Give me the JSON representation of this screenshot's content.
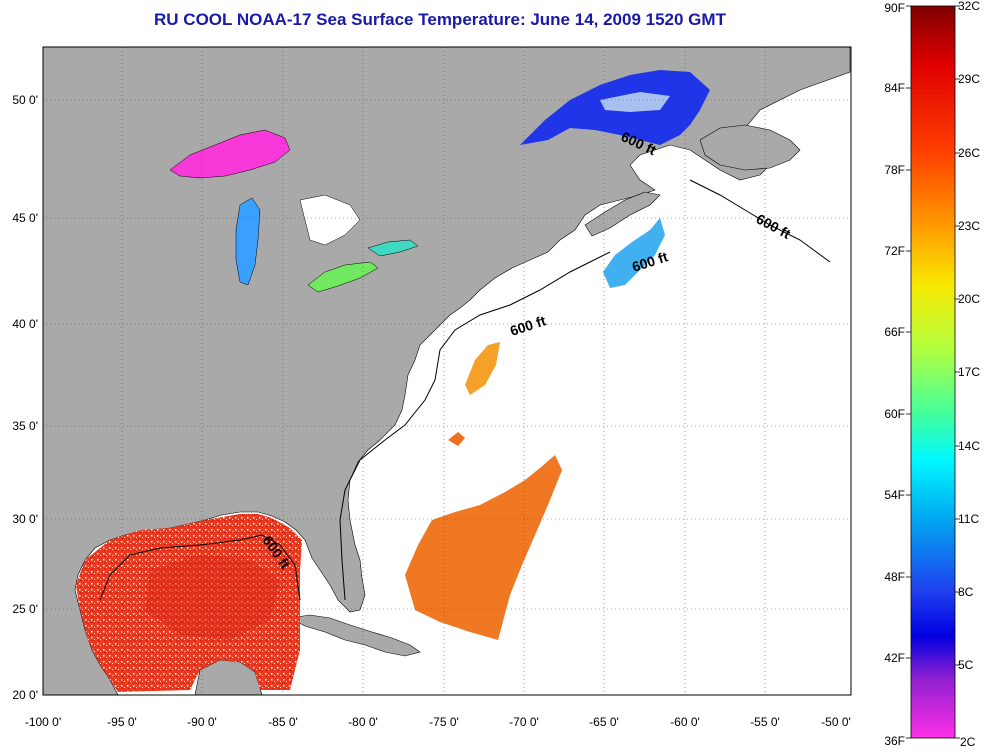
{
  "title": "RU COOL  NOAA-17  Sea Surface Temperature:  June 14, 2009 1520 GMT",
  "lat_ticks": [
    "50 0'",
    "45 0'",
    "40 0'",
    "35 0'",
    "30 0'",
    "25 0'",
    "20 0'"
  ],
  "lon_ticks": [
    "-100 0'",
    "-95 0'",
    "-90 0'",
    "-85 0'",
    "-80 0'",
    "-75 0'",
    "-70 0'",
    "-65 0'",
    "-60 0'",
    "-55 0'",
    "-50 0'"
  ],
  "contour_labels": [
    "600 ft",
    "600 ft",
    "600 ft",
    "600 ft",
    "600 ft"
  ],
  "colorbar": {
    "fahrenheit": [
      "90F",
      "84F",
      "78F",
      "72F",
      "66F",
      "60F",
      "54F",
      "48F",
      "42F",
      "36F"
    ],
    "celsius": [
      "32C",
      "29C",
      "26C",
      "23C",
      "20C",
      "17C",
      "14C",
      "11C",
      "8C",
      "5C",
      "2C"
    ]
  },
  "colors": {
    "land": "#a9a9a9",
    "water": "#ffffff",
    "warm": "#e8321a",
    "orange": "#f07a1a",
    "cold_blue": "#2030e0",
    "magenta": "#ff30e0",
    "title": "#1a1aa8"
  }
}
